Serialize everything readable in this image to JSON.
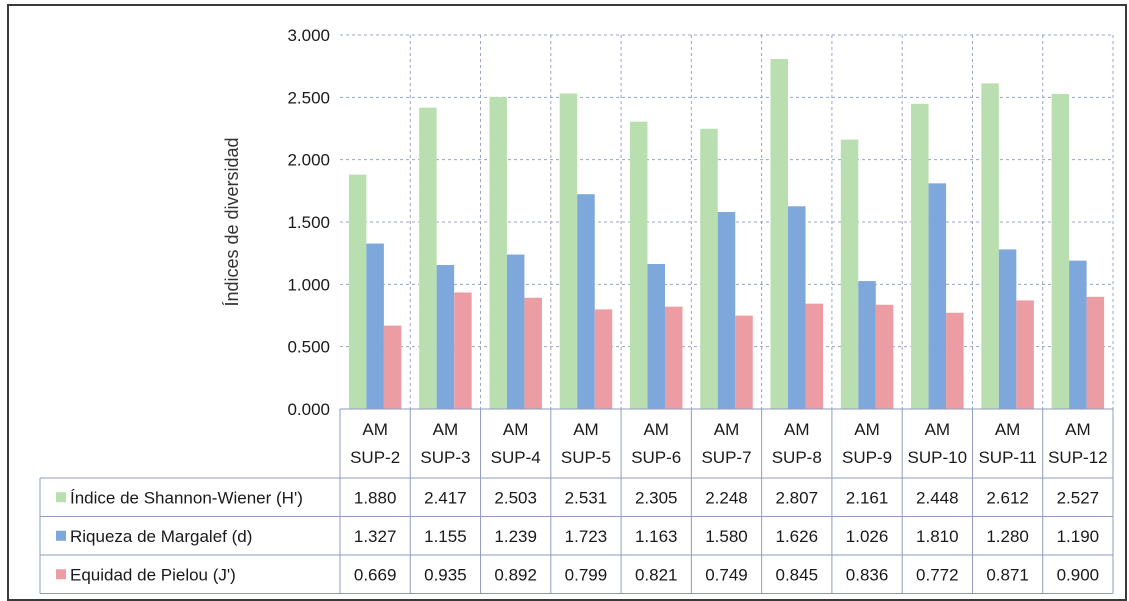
{
  "chart_data": {
    "type": "bar",
    "title": "",
    "xlabel": "",
    "ylabel": "Índices de diversidad",
    "ylim": [
      0,
      3
    ],
    "yticks": [
      "0.000",
      "0.500",
      "1.000",
      "1.500",
      "2.000",
      "2.500",
      "3.000"
    ],
    "grid": true,
    "legend": "data-table",
    "categories": [
      [
        "AM",
        "SUP-2"
      ],
      [
        "AM",
        "SUP-3"
      ],
      [
        "AM",
        "SUP-4"
      ],
      [
        "AM",
        "SUP-5"
      ],
      [
        "AM",
        "SUP-6"
      ],
      [
        "AM",
        "SUP-7"
      ],
      [
        "AM",
        "SUP-8"
      ],
      [
        "AM",
        "SUP-9"
      ],
      [
        "AM",
        "SUP-10"
      ],
      [
        "AM",
        "SUP-11"
      ],
      [
        "AM",
        "SUP-12"
      ]
    ],
    "series": [
      {
        "name": "Índice de Shannon-Wiener (H')",
        "color": "#b9dfb0",
        "values": [
          1.88,
          2.417,
          2.503,
          2.531,
          2.305,
          2.248,
          2.807,
          2.161,
          2.448,
          2.612,
          2.527
        ],
        "labels": [
          "1.880",
          "2.417",
          "2.503",
          "2.531",
          "2.305",
          "2.248",
          "2.807",
          "2.161",
          "2.448",
          "2.612",
          "2.527"
        ]
      },
      {
        "name": "Riqueza de Margalef (d)",
        "color": "#7ea7dc",
        "values": [
          1.327,
          1.155,
          1.239,
          1.723,
          1.163,
          1.58,
          1.626,
          1.026,
          1.81,
          1.28,
          1.19
        ],
        "labels": [
          "1.327",
          "1.155",
          "1.239",
          "1.723",
          "1.163",
          "1.580",
          "1.626",
          "1.026",
          "1.810",
          "1.280",
          "1.190"
        ]
      },
      {
        "name": "Equidad de Pielou (J')",
        "color": "#ec9ca3",
        "values": [
          0.669,
          0.935,
          0.892,
          0.799,
          0.821,
          0.749,
          0.845,
          0.836,
          0.772,
          0.871,
          0.9
        ],
        "labels": [
          "0.669",
          "0.935",
          "0.892",
          "0.799",
          "0.821",
          "0.749",
          "0.845",
          "0.836",
          "0.772",
          "0.871",
          "0.900"
        ]
      }
    ]
  }
}
